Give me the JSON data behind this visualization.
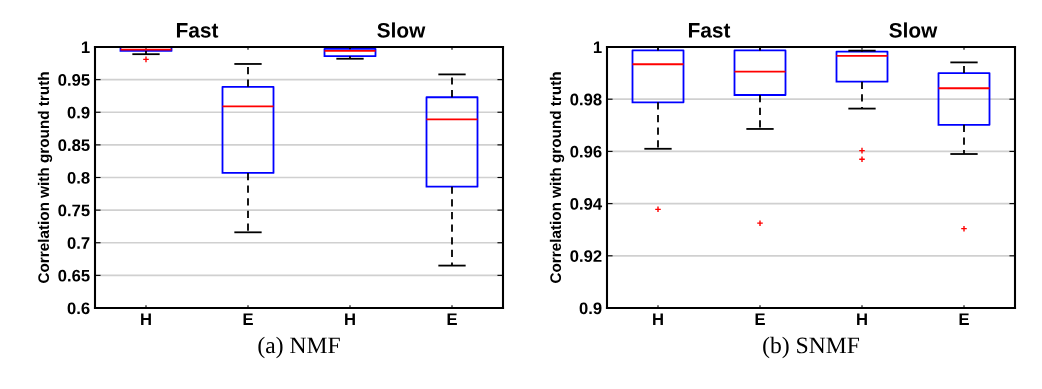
{
  "chart_data": [
    {
      "type": "box",
      "xlabel": "(a) NMF",
      "ylabel": "Correlation with ground truth",
      "categories": [
        "H",
        "E",
        "H",
        "E"
      ],
      "annotations": [
        "Fast",
        "Slow"
      ],
      "boxes": [
        {
          "low": 0.989,
          "q1": 0.994,
          "median": 0.996,
          "q3": 1.0,
          "high": 1.0,
          "outliers": [
            0.981
          ]
        },
        {
          "low": 0.716,
          "q1": 0.807,
          "median": 0.909,
          "q3": 0.939,
          "high": 0.974
        },
        {
          "low": 0.982,
          "q1": 0.986,
          "median": 0.994,
          "q3": 0.997,
          "high": 1.0
        },
        {
          "low": 0.665,
          "q1": 0.786,
          "median": 0.889,
          "q3": 0.923,
          "high": 0.958
        }
      ],
      "color": "#0000ff",
      "ylim": [
        0.6,
        1
      ],
      "yticks": [
        0.6,
        0.65,
        0.7,
        0.75,
        0.8,
        0.85,
        0.9,
        0.95,
        1
      ],
      "grid": "y"
    },
    {
      "type": "box",
      "xlabel": "(b) SNMF",
      "ylabel": "Correlation with ground truth",
      "categories": [
        "H",
        "E",
        "H",
        "E"
      ],
      "annotations": [
        {
          "text": "Fast"
        },
        {
          "text": "Slow"
        }
      ],
      "boxes": [
        {
          "low": 0.961,
          "q1": 0.9788,
          "median": 0.9934,
          "q3": 0.9987,
          "high": 1.0,
          "outliers": [
            0.9378
          ]
        },
        {
          "low": 0.9686,
          "q1": 0.9816,
          "median": 0.9906,
          "q3": 0.9987,
          "high": 1.0,
          "outliers": [
            0.9325
          ]
        },
        {
          "low": 0.9764,
          "q1": 0.9867,
          "median": 0.9966,
          "q3": 0.9982,
          "high": 0.9986,
          "outliers": [
            0.9603,
            0.957
          ]
        },
        {
          "low": 0.959,
          "q1": 0.9702,
          "median": 0.9842,
          "q3": 0.99,
          "high": 0.9941,
          "outliers": [
            0.9304
          ]
        }
      ],
      "color": "#0000ff",
      "ylim": [
        0.9,
        1
      ],
      "yticks": [
        0.9,
        0.92,
        0.94,
        0.96,
        0.98,
        1
      ],
      "grid": "y"
    }
  ]
}
